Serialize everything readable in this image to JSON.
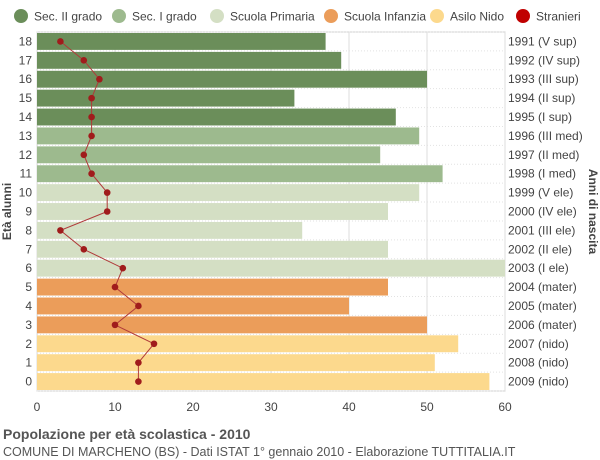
{
  "chart_data": {
    "type": "bar",
    "orientation": "horizontal",
    "title": "Popolazione per età scolastica - 2010",
    "subtitle": "COMUNE DI MARCHENO (BS) - Dati ISTAT 1° gennaio 2010 - Elaborazione TUTTITALIA.IT",
    "ylabel_left": "Età alunni",
    "ylabel_right": "Anni di nascita",
    "xlim": [
      0,
      60
    ],
    "xticks": [
      0,
      10,
      20,
      30,
      40,
      50,
      60
    ],
    "grid": true,
    "legend_position": "top",
    "legend": [
      {
        "name": "Sec. II grado",
        "color": "#6b8e5a",
        "shape": "circle"
      },
      {
        "name": "Sec. I grado",
        "color": "#9dba8e",
        "shape": "circle"
      },
      {
        "name": "Scuola Primaria",
        "color": "#d4dfc4",
        "shape": "circle"
      },
      {
        "name": "Scuola Infanzia",
        "color": "#eb9d5a",
        "shape": "circle"
      },
      {
        "name": "Asilo Nido",
        "color": "#fcd98d",
        "shape": "circle"
      },
      {
        "name": "Stranieri",
        "color": "#c00000",
        "shape": "circle"
      }
    ],
    "categories": [
      "18",
      "17",
      "16",
      "15",
      "14",
      "13",
      "12",
      "11",
      "10",
      "9",
      "8",
      "7",
      "6",
      "5",
      "4",
      "3",
      "2",
      "1",
      "0"
    ],
    "birth_years": [
      "1991 (V sup)",
      "1992 (IV sup)",
      "1993 (III sup)",
      "1994 (II sup)",
      "1995 (I sup)",
      "1996 (III med)",
      "1997 (II med)",
      "1998 (I med)",
      "1999 (V ele)",
      "2000 (IV ele)",
      "2001 (III ele)",
      "2002 (II ele)",
      "2003 (I ele)",
      "2004 (mater)",
      "2005 (mater)",
      "2006 (mater)",
      "2007 (nido)",
      "2008 (nido)",
      "2009 (nido)"
    ],
    "values": [
      37,
      39,
      50,
      33,
      46,
      49,
      44,
      52,
      49,
      45,
      34,
      45,
      60,
      45,
      40,
      50,
      54,
      51,
      58
    ],
    "bar_groups": [
      0,
      0,
      0,
      0,
      0,
      1,
      1,
      1,
      2,
      2,
      2,
      2,
      2,
      3,
      3,
      3,
      4,
      4,
      4
    ],
    "stranieri": [
      3,
      6,
      8,
      7,
      7,
      7,
      6,
      7,
      9,
      9,
      3,
      6,
      11,
      10,
      13,
      10,
      15,
      13,
      13
    ]
  }
}
